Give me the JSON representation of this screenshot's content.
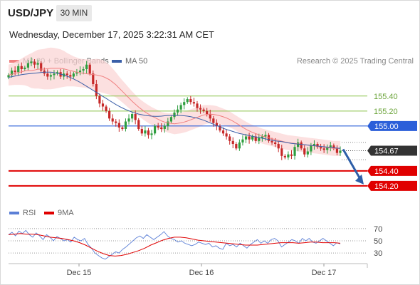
{
  "header": {
    "symbol": "USD/JPY",
    "timeframe": "30 MIN",
    "datetime": "Wednesday, December 17, 2025 3:22:31 AM CET",
    "credit": "Research © 2025 Trading Central"
  },
  "legend": {
    "main": [
      {
        "label": "MA 20 + Bollinger Bands",
        "color": "#f08080"
      },
      {
        "label": "MA 50",
        "color": "#3a5fa8"
      }
    ],
    "rsi": [
      {
        "label": "RSI",
        "color": "#5b7fd6"
      },
      {
        "label": "9MA",
        "color": "#e00000"
      }
    ]
  },
  "colors": {
    "up": "#2e9e3f",
    "down": "#c62828",
    "resistance": "#8bc34a",
    "pivot": "#2b5fd9",
    "support": "#e00000",
    "current_box": "#333333",
    "arrow": "#2d5ea8"
  },
  "chart_data": [
    {
      "type": "candlestick",
      "xlabel": "",
      "ylabel": "",
      "x_ticks": [
        "Dec 15",
        "Dec 16",
        "Dec 17"
      ],
      "y_range": [
        153.97,
        155.76
      ],
      "levels": [
        {
          "label": "155.40",
          "value": 155.4,
          "kind": "resistance"
        },
        {
          "label": "155.20",
          "value": 155.2,
          "kind": "resistance"
        },
        {
          "label": "155.00",
          "value": 155.0,
          "kind": "pivot"
        },
        {
          "label": "154.67",
          "value": 154.67,
          "kind": "current"
        },
        {
          "label": "154.40",
          "value": 154.4,
          "kind": "support"
        },
        {
          "label": "154.20",
          "value": 154.2,
          "kind": "support"
        }
      ],
      "forecast_target": 154.2,
      "close_series": [
        155.68,
        155.74,
        155.72,
        155.8,
        155.76,
        155.78,
        155.84,
        155.86,
        155.82,
        155.84,
        155.74,
        155.7,
        155.66,
        155.68,
        155.7,
        155.72,
        155.66,
        155.7,
        155.68,
        155.66,
        155.7,
        155.72,
        155.74,
        155.76,
        155.82,
        155.7,
        155.56,
        155.4,
        155.3,
        155.26,
        155.2,
        155.1,
        155.06,
        155.04,
        154.98,
        154.96,
        155.06,
        155.1,
        155.16,
        155.08,
        154.96,
        154.9,
        154.94,
        154.88,
        154.9,
        155.0,
        154.98,
        154.96,
        155.0,
        155.06,
        155.12,
        155.18,
        155.22,
        155.28,
        155.32,
        155.36,
        155.32,
        155.3,
        155.24,
        155.22,
        155.2,
        155.16,
        155.1,
        155.04,
        155.0,
        154.94,
        154.9,
        154.86,
        154.8,
        154.76,
        154.7,
        154.78,
        154.82,
        154.86,
        154.82,
        154.86,
        154.8,
        154.84,
        154.86,
        154.88,
        154.8,
        154.78,
        154.76,
        154.7,
        154.6,
        154.58,
        154.62,
        154.6,
        154.72,
        154.78,
        154.7,
        154.62,
        154.66,
        154.74,
        154.76,
        154.72,
        154.7,
        154.68,
        154.72,
        154.74,
        154.7,
        154.64,
        154.67
      ],
      "ma20": [
        155.68,
        155.7,
        155.72,
        155.74,
        155.74,
        155.76,
        155.76,
        155.77,
        155.77,
        155.77,
        155.75,
        155.73,
        155.71,
        155.7,
        155.69,
        155.68,
        155.66,
        155.62,
        155.56,
        155.48,
        155.4,
        155.32,
        155.25,
        155.19,
        155.14,
        155.1,
        155.06,
        155.04,
        155.03,
        155.04,
        155.06,
        155.09,
        155.12,
        155.15,
        155.16,
        155.15,
        155.13,
        155.1,
        155.06,
        155.01,
        154.96,
        154.92,
        154.89,
        154.86,
        154.84,
        154.82,
        154.8,
        154.78,
        154.77,
        154.76,
        154.75,
        154.74,
        154.73,
        154.72,
        154.71,
        154.7,
        154.7
      ],
      "ma50": [
        155.65,
        155.67,
        155.69,
        155.7,
        155.71,
        155.72,
        155.72,
        155.7,
        155.67,
        155.63,
        155.58,
        155.52,
        155.46,
        155.4,
        155.34,
        155.28,
        155.23,
        155.19,
        155.16,
        155.14,
        155.13,
        155.13,
        155.14,
        155.14,
        155.14,
        155.13,
        155.11,
        155.08,
        155.04,
        155.0,
        154.96,
        154.93,
        154.9,
        154.88,
        154.86,
        154.84,
        154.82,
        154.8,
        154.79,
        154.77,
        154.76,
        154.75,
        154.74,
        154.73,
        154.72,
        154.71,
        154.7
      ],
      "bb_width": [
        0.14,
        0.15,
        0.17,
        0.2,
        0.24,
        0.26,
        0.27,
        0.28,
        0.27,
        0.25,
        0.22,
        0.2,
        0.19,
        0.19,
        0.2,
        0.22,
        0.22,
        0.2,
        0.17,
        0.15,
        0.14,
        0.13,
        0.12,
        0.12,
        0.12,
        0.12,
        0.12,
        0.13,
        0.14,
        0.14,
        0.14,
        0.14,
        0.14,
        0.13,
        0.12,
        0.12,
        0.11,
        0.11,
        0.1,
        0.1,
        0.1,
        0.1,
        0.1,
        0.1,
        0.1,
        0.1,
        0.1,
        0.1,
        0.1,
        0.1,
        0.1,
        0.1,
        0.1,
        0.1,
        0.1,
        0.1,
        0.1
      ]
    },
    {
      "type": "line",
      "title": "RSI",
      "y_ticks": [
        70,
        50,
        30
      ],
      "y_range": [
        15,
        85
      ],
      "series": [
        {
          "name": "RSI",
          "values": [
            60,
            64,
            58,
            66,
            62,
            67,
            60,
            56,
            63,
            58,
            52,
            60,
            56,
            50,
            57,
            54,
            50,
            52,
            48,
            56,
            52,
            50,
            54,
            44,
            38,
            30,
            26,
            22,
            20,
            24,
            28,
            32,
            30,
            36,
            40,
            45,
            50,
            55,
            58,
            54,
            60,
            56,
            52,
            56,
            60,
            65,
            58,
            54,
            52,
            48,
            50,
            46,
            44,
            42,
            44,
            48,
            46,
            44,
            46,
            40,
            42,
            38,
            36,
            46,
            42,
            44,
            40,
            46,
            42,
            38,
            44,
            48,
            52,
            46,
            50,
            46,
            52,
            54,
            50,
            40,
            44,
            48,
            52,
            50,
            46,
            54,
            50,
            54,
            48,
            46,
            50,
            54,
            50,
            46,
            42,
            47,
            45
          ]
        },
        {
          "name": "9MA",
          "values": [
            60,
            61,
            62,
            61,
            61,
            60,
            58,
            56,
            55,
            54,
            52,
            50,
            47,
            43,
            38,
            33,
            29,
            26,
            25,
            26,
            28,
            31,
            34,
            38,
            43,
            47,
            51,
            54,
            56,
            56,
            55,
            53,
            51,
            50,
            49,
            48,
            47,
            46,
            45,
            44,
            43,
            43,
            43,
            44,
            45,
            46,
            47,
            47,
            47,
            46,
            47,
            48,
            48,
            47,
            47,
            47,
            46
          ]
        }
      ]
    }
  ]
}
